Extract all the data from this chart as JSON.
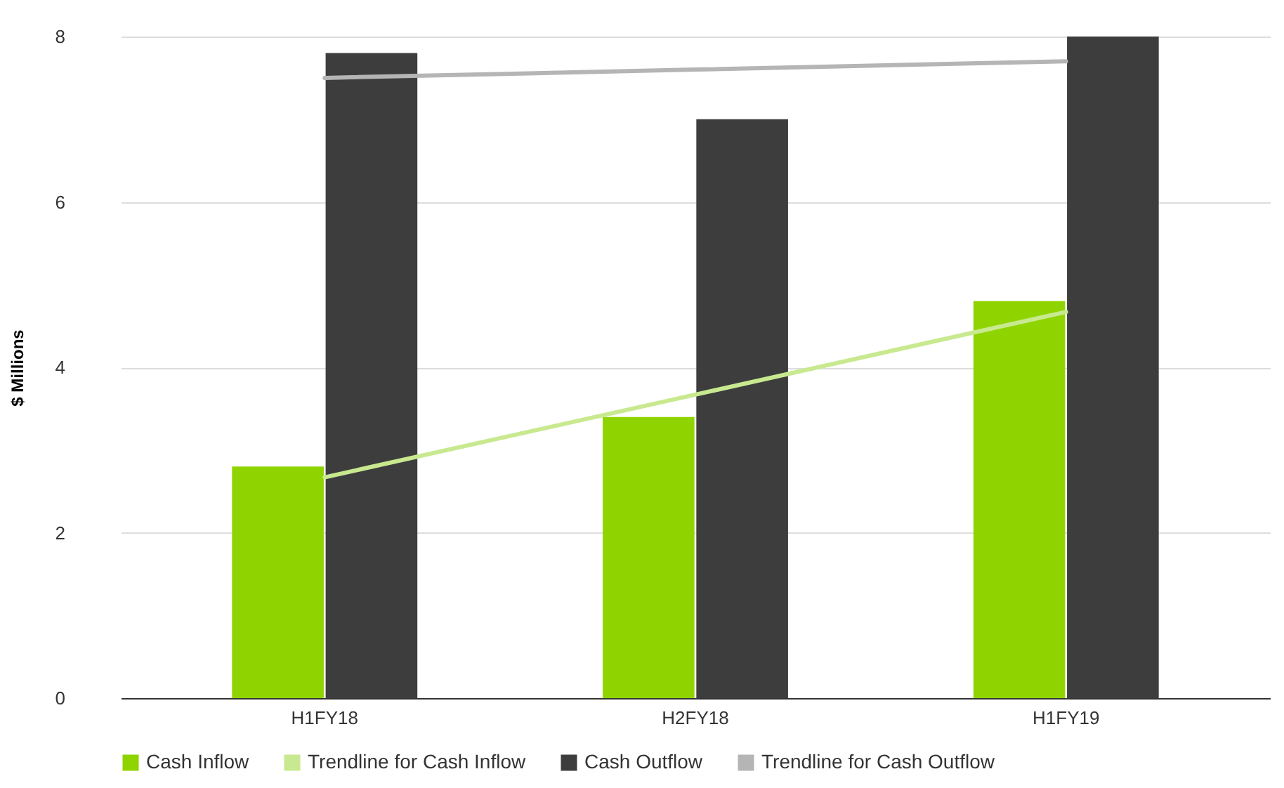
{
  "chart_data": {
    "type": "bar",
    "ylabel": "$ Millions",
    "categories": [
      "H1FY18",
      "H2FY18",
      "H1FY19"
    ],
    "series": [
      {
        "name": "Cash Inflow",
        "color": "#8fd400",
        "values": [
          2.8,
          3.4,
          4.8
        ]
      },
      {
        "name": "Trendline for Cash Inflow",
        "type": "line",
        "color": "#c8e98f",
        "x": [
          "H1FY18",
          "H2FY18",
          "H1FY19"
        ],
        "values": [
          2.67,
          3.67,
          4.67
        ]
      },
      {
        "name": "Cash Outflow",
        "color": "#3d3d3d",
        "values": [
          7.8,
          7.0,
          8.0
        ]
      },
      {
        "name": "Trendline for Cash Outflow",
        "type": "line",
        "color": "#b5b5b5",
        "x": [
          "H1FY18",
          "H2FY18",
          "H1FY19"
        ],
        "values": [
          7.5,
          7.6,
          7.7
        ]
      }
    ],
    "ylim": [
      0,
      8
    ],
    "yticks": [
      0,
      2,
      4,
      6,
      8
    ],
    "grid": "y",
    "legend": "bottom"
  }
}
